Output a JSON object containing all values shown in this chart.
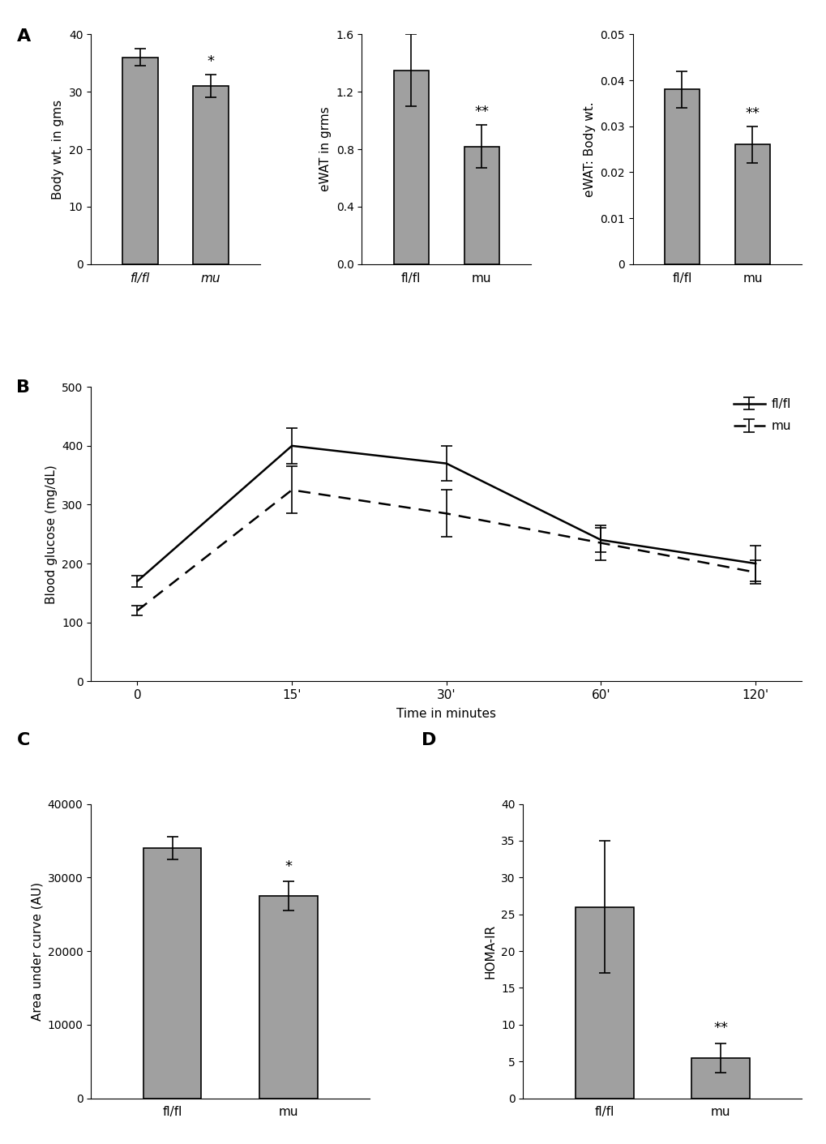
{
  "panel_A": {
    "body_weight": {
      "categories": [
        "fl/fl",
        "mu"
      ],
      "values": [
        36.0,
        31.0
      ],
      "errors": [
        1.5,
        2.0
      ],
      "ylabel": "Body wt. in gms",
      "ylim": [
        0,
        40
      ],
      "yticks": [
        0,
        10,
        20,
        30,
        40
      ],
      "sig_label": "*",
      "sig_bar_idx": 1,
      "label_style_italic": [
        true,
        true
      ]
    },
    "ewat_grams": {
      "categories": [
        "fl/fl",
        "mu"
      ],
      "values": [
        1.35,
        0.82
      ],
      "errors": [
        0.25,
        0.15
      ],
      "ylabel": "eWAT in grms",
      "ylim": [
        0,
        1.6
      ],
      "yticks": [
        0,
        0.4,
        0.8,
        1.2,
        1.6
      ],
      "sig_label": "**",
      "sig_bar_idx": 1,
      "label_style_italic": [
        false,
        false
      ]
    },
    "ewat_ratio": {
      "categories": [
        "fl/fl",
        "mu"
      ],
      "values": [
        0.038,
        0.026
      ],
      "errors": [
        0.004,
        0.004
      ],
      "ylabel": "eWAT: Body wt.",
      "ylim": [
        0,
        0.05
      ],
      "yticks": [
        0,
        0.01,
        0.02,
        0.03,
        0.04,
        0.05
      ],
      "sig_label": "**",
      "sig_bar_idx": 1,
      "label_style_italic": [
        false,
        false
      ]
    }
  },
  "panel_B": {
    "time_labels": [
      "0",
      "15'",
      "30'",
      "60'",
      "120'"
    ],
    "time_positions": [
      0,
      1,
      2,
      3,
      4
    ],
    "flfl_mean": [
      170,
      400,
      370,
      240,
      200
    ],
    "flfl_err": [
      10,
      30,
      30,
      20,
      30
    ],
    "mu_mean": [
      120,
      325,
      285,
      235,
      185
    ],
    "mu_err": [
      8,
      40,
      40,
      30,
      20
    ],
    "xlabel": "Time in minutes",
    "ylabel": "Blood glucose (mg/dL)",
    "ylim": [
      0,
      500
    ],
    "yticks": [
      0,
      100,
      200,
      300,
      400,
      500
    ]
  },
  "panel_C": {
    "categories": [
      "fl/fl",
      "mu"
    ],
    "values": [
      34000,
      27500
    ],
    "errors": [
      1500,
      2000
    ],
    "ylabel": "Area under curve (AU)",
    "ylim": [
      0,
      40000
    ],
    "yticks": [
      0,
      10000,
      20000,
      30000,
      40000
    ],
    "sig_label": "*",
    "sig_bar_idx": 1
  },
  "panel_D": {
    "categories": [
      "fl/fl",
      "mu"
    ],
    "values": [
      26.0,
      5.5
    ],
    "errors": [
      9.0,
      2.0
    ],
    "ylabel": "HOMA-IR",
    "ylim": [
      0,
      40
    ],
    "yticks": [
      0,
      5,
      10,
      15,
      20,
      25,
      30,
      35,
      40
    ],
    "sig_label": "**",
    "sig_bar_idx": 1
  },
  "bar_color": "#a0a0a0",
  "bar_edgecolor": "#000000",
  "bar_width": 0.5,
  "background_color": "#ffffff",
  "label_fontsize": 11,
  "tick_fontsize": 10,
  "sig_fontsize": 13,
  "panel_label_fontsize": 16
}
